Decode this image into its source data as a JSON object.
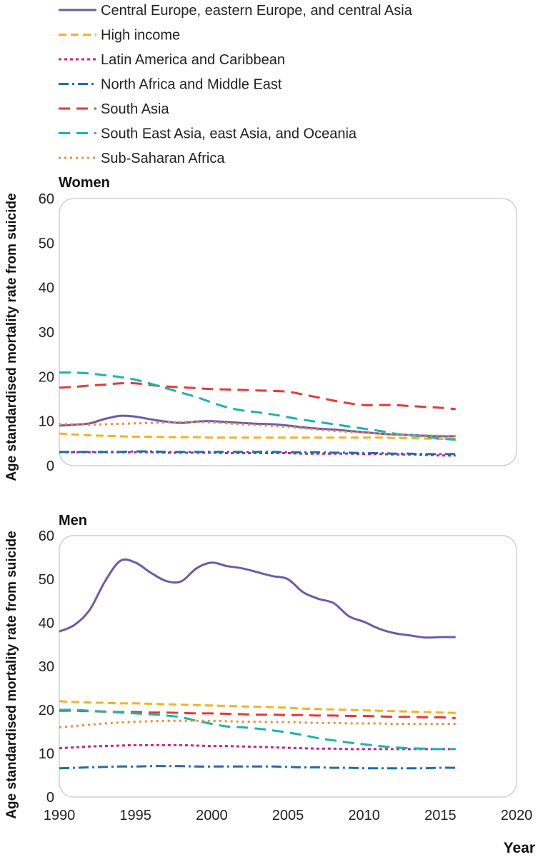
{
  "chart_data": {
    "type": "line",
    "legend_position": "top-left",
    "xlabel": "Year",
    "ylabel": "Age standardised mortality rate from suicide",
    "xlim": [
      1990,
      2020
    ],
    "ylim": [
      0,
      60
    ],
    "xticks": [
      "1990",
      "1995",
      "2000",
      "2005",
      "2010",
      "2015",
      "2020"
    ],
    "yticks": [
      "0",
      "10",
      "20",
      "30",
      "40",
      "50",
      "60"
    ],
    "grid": false,
    "legend": [
      {
        "name": "Central Europe, eastern Europe, and central Asia",
        "color": "#6b5bab",
        "dash": "solid"
      },
      {
        "name": "High income",
        "color": "#f6b21d",
        "dash": "dash"
      },
      {
        "name": "Latin America and Caribbean",
        "color": "#cc1f8a",
        "dash": "dot"
      },
      {
        "name": "North Africa and Middle East",
        "color": "#1f6db0",
        "dash": "dashdot"
      },
      {
        "name": "South Asia",
        "color": "#e53a35",
        "dash": "longdash"
      },
      {
        "name": "South East Asia, east Asia, and Oceania",
        "color": "#1bb3b0",
        "dash": "longdash"
      },
      {
        "name": "Sub-Saharan Africa",
        "color": "#f08a3a",
        "dash": "shortdot"
      }
    ],
    "panels": [
      {
        "title": "Women",
        "x": [
          1990,
          1991,
          1992,
          1993,
          1994,
          1995,
          1996,
          1997,
          1998,
          1999,
          2000,
          2001,
          2002,
          2003,
          2004,
          2005,
          2006,
          2007,
          2008,
          2009,
          2010,
          2011,
          2012,
          2013,
          2014,
          2015,
          2016
        ],
        "series": [
          {
            "name": "Central Europe, eastern Europe, and central Asia",
            "values": [
              9.0,
              9.2,
              9.5,
              10.5,
              11.2,
              11.0,
              10.4,
              9.9,
              9.6,
              9.9,
              10.0,
              9.8,
              9.6,
              9.4,
              9.3,
              9.0,
              8.6,
              8.3,
              8.1,
              7.8,
              7.5,
              7.2,
              7.0,
              6.9,
              6.7,
              6.6,
              6.6
            ]
          },
          {
            "name": "High income",
            "values": [
              7.2,
              7.0,
              6.8,
              6.7,
              6.6,
              6.5,
              6.5,
              6.4,
              6.4,
              6.4,
              6.3,
              6.3,
              6.3,
              6.3,
              6.3,
              6.3,
              6.3,
              6.3,
              6.3,
              6.3,
              6.3,
              6.3,
              6.2,
              6.2,
              6.1,
              6.0,
              6.0
            ]
          },
          {
            "name": "Latin America and Caribbean",
            "values": [
              3.0,
              3.0,
              3.0,
              3.0,
              3.0,
              3.0,
              3.0,
              2.9,
              2.9,
              2.9,
              2.9,
              2.8,
              2.8,
              2.8,
              2.8,
              2.8,
              2.7,
              2.7,
              2.7,
              2.7,
              2.6,
              2.6,
              2.5,
              2.5,
              2.4,
              2.3,
              2.3
            ]
          },
          {
            "name": "North Africa and Middle East",
            "values": [
              3.1,
              3.1,
              3.1,
              3.1,
              3.1,
              3.2,
              3.2,
              3.1,
              3.1,
              3.1,
              3.1,
              3.1,
              3.1,
              3.1,
              3.1,
              3.0,
              3.0,
              3.0,
              2.9,
              2.9,
              2.8,
              2.8,
              2.7,
              2.7,
              2.6,
              2.6,
              2.6
            ]
          },
          {
            "name": "South Asia",
            "values": [
              17.5,
              17.7,
              18.0,
              18.2,
              18.5,
              18.5,
              18.1,
              17.8,
              17.6,
              17.4,
              17.2,
              17.1,
              17.0,
              16.9,
              16.8,
              16.6,
              16.0,
              15.3,
              14.6,
              14.0,
              13.6,
              13.6,
              13.6,
              13.4,
              13.2,
              13.0,
              12.7
            ]
          },
          {
            "name": "South East Asia, east Asia, and Oceania",
            "values": [
              20.9,
              20.9,
              20.7,
              20.3,
              19.9,
              19.3,
              18.4,
              17.4,
              16.4,
              15.4,
              14.2,
              13.1,
              12.4,
              12.0,
              11.5,
              10.9,
              10.3,
              9.8,
              9.3,
              8.8,
              8.3,
              7.8,
              7.2,
              6.8,
              6.5,
              6.1,
              5.8
            ]
          },
          {
            "name": "Sub-Saharan Africa",
            "values": [
              9.3,
              9.3,
              9.2,
              9.3,
              9.4,
              9.5,
              9.6,
              9.7,
              9.8,
              9.8,
              9.7,
              9.5,
              9.3,
              9.1,
              8.9,
              8.7,
              8.4,
              8.1,
              7.8,
              7.6,
              7.4,
              7.2,
              7.0,
              6.9,
              6.8,
              6.7,
              6.7
            ]
          }
        ]
      },
      {
        "title": "Men",
        "x": [
          1990,
          1991,
          1992,
          1993,
          1994,
          1995,
          1996,
          1997,
          1998,
          1999,
          2000,
          2001,
          2002,
          2003,
          2004,
          2005,
          2006,
          2007,
          2008,
          2009,
          2010,
          2011,
          2012,
          2013,
          2014,
          2015,
          2016
        ],
        "series": [
          {
            "name": "Central Europe, eastern Europe, and central Asia",
            "values": [
              38.0,
              39.5,
              43.0,
              49.5,
              54.2,
              53.8,
              51.5,
              49.6,
              49.5,
              52.5,
              53.8,
              53.0,
              52.5,
              51.6,
              50.7,
              50.0,
              47.0,
              45.5,
              44.5,
              41.5,
              40.2,
              38.6,
              37.6,
              37.1,
              36.6,
              36.7,
              36.7
            ]
          },
          {
            "name": "High income",
            "values": [
              22.0,
              21.8,
              21.7,
              21.6,
              21.5,
              21.5,
              21.4,
              21.3,
              21.2,
              21.1,
              21.0,
              20.9,
              20.8,
              20.7,
              20.6,
              20.5,
              20.3,
              20.2,
              20.1,
              20.0,
              19.9,
              19.8,
              19.7,
              19.6,
              19.5,
              19.4,
              19.3
            ]
          },
          {
            "name": "Latin America and Caribbean",
            "values": [
              11.2,
              11.4,
              11.6,
              11.7,
              11.8,
              11.9,
              11.9,
              11.9,
              11.9,
              11.8,
              11.7,
              11.7,
              11.6,
              11.5,
              11.4,
              11.3,
              11.2,
              11.1,
              11.1,
              11.0,
              11.0,
              11.0,
              11.0,
              11.0,
              11.0,
              11.0,
              11.0
            ]
          },
          {
            "name": "North Africa and Middle East",
            "values": [
              6.6,
              6.7,
              6.8,
              6.9,
              7.0,
              7.0,
              7.1,
              7.1,
              7.1,
              7.0,
              7.0,
              7.0,
              7.0,
              7.0,
              7.0,
              6.9,
              6.8,
              6.8,
              6.7,
              6.7,
              6.6,
              6.6,
              6.6,
              6.6,
              6.6,
              6.7,
              6.7
            ]
          },
          {
            "name": "South Asia",
            "values": [
              19.8,
              19.8,
              19.7,
              19.6,
              19.5,
              19.5,
              19.4,
              19.4,
              19.3,
              19.2,
              19.2,
              19.1,
              19.0,
              18.9,
              18.9,
              18.8,
              18.8,
              18.7,
              18.7,
              18.6,
              18.6,
              18.5,
              18.4,
              18.4,
              18.3,
              18.3,
              18.1
            ]
          },
          {
            "name": "South East Asia, east Asia, and Oceania",
            "values": [
              20.0,
              20.0,
              19.8,
              19.6,
              19.4,
              19.2,
              19.0,
              18.7,
              18.3,
              17.5,
              16.8,
              16.2,
              16.0,
              15.7,
              15.3,
              14.8,
              14.2,
              13.5,
              13.0,
              12.5,
              12.1,
              11.7,
              11.4,
              11.2,
              11.1,
              11.0,
              11.0
            ]
          },
          {
            "name": "Sub-Saharan Africa",
            "values": [
              16.0,
              16.3,
              16.6,
              16.9,
              17.1,
              17.3,
              17.4,
              17.5,
              17.5,
              17.5,
              17.5,
              17.4,
              17.3,
              17.3,
              17.2,
              17.2,
              17.1,
              17.0,
              17.0,
              16.9,
              16.9,
              16.9,
              16.8,
              16.8,
              16.8,
              16.8,
              16.8
            ]
          }
        ]
      }
    ]
  }
}
